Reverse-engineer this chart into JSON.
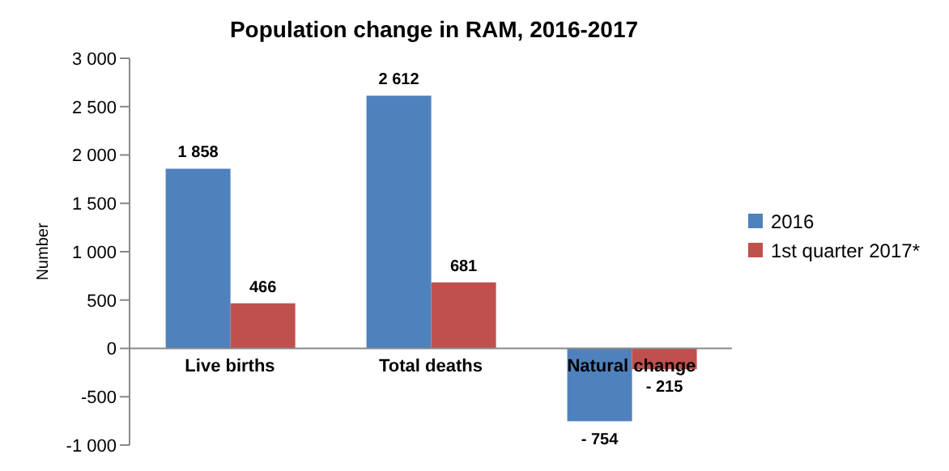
{
  "chart_data": {
    "type": "bar",
    "title": "Population change in RAM, 2016-2017",
    "ylabel": "Number",
    "categories": [
      "Live births",
      "Total deaths",
      "Natural change"
    ],
    "series": [
      {
        "name": "2016",
        "color": "#4f81bd",
        "values": [
          1858,
          2612,
          -754
        ],
        "value_labels": [
          "1 858",
          "2 612",
          "- 754"
        ]
      },
      {
        "name": "1st quarter 2017*",
        "color": "#c0504d",
        "values": [
          466,
          681,
          -215
        ],
        "value_labels": [
          "466",
          "681",
          "- 215"
        ]
      }
    ],
    "ylim": [
      -1000,
      3000
    ],
    "yticks": [
      {
        "value": -1000,
        "label": "-1 000"
      },
      {
        "value": -500,
        "label": "-500"
      },
      0,
      500,
      {
        "value": 1000,
        "label": "1 000"
      },
      {
        "value": 1500,
        "label": "1 500"
      },
      {
        "value": 2000,
        "label": "2 000"
      },
      {
        "value": 2500,
        "label": "2 500"
      },
      {
        "value": 3000,
        "label": "3 000"
      }
    ],
    "grid": false,
    "legend": "right"
  }
}
